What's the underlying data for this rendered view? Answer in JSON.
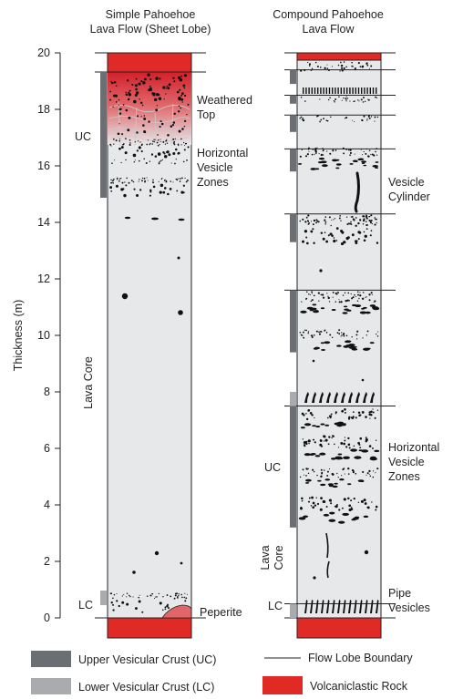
{
  "colors": {
    "volcaniclastic": "#e02a26",
    "lava_core": "#e6e8ea",
    "upper_crust": "#6b6e72",
    "lower_crust": "#a9abae",
    "outline": "#222222"
  },
  "axis": {
    "label": "Thickness (m)",
    "min": 0,
    "max": 20,
    "ticks": [
      "0",
      "2",
      "4",
      "6",
      "8",
      "10",
      "12",
      "14",
      "16",
      "18",
      "20"
    ]
  },
  "simple": {
    "title_line1": "Simple Pahoehoe",
    "title_line2": "Lava Flow (Sheet Lobe)",
    "labels": {
      "weathered_1": "Weathered",
      "weathered_2": "Top",
      "hvz_1": "Horizontal",
      "hvz_2": "Vesicle",
      "hvz_3": "Zones",
      "uc": "UC",
      "lava_core": "Lava Core",
      "lc": "LC",
      "peperite": "Peperite"
    },
    "upper_crust_range": [
      14.8,
      19.3
    ],
    "lower_crust_range": [
      0.5,
      1.0
    ]
  },
  "compound": {
    "title_line1": "Compound Pahoehoe",
    "title_line2": "Lava Flow",
    "labels": {
      "vc_1": "Vesicle",
      "vc_2": "Cylinder",
      "hvz_1": "Horizontal",
      "hvz_2": "Vesicle",
      "hvz_3": "Zones",
      "uc": "UC",
      "lava_core_1": "Lava",
      "lava_core_2": "Core",
      "lc": "LC",
      "pipe_1": "Pipe",
      "pipe_2": "Vesicles"
    },
    "boundaries": [
      0.5,
      7.5,
      11.6,
      14.3,
      16.6,
      17.8,
      18.5,
      19.4
    ],
    "uc_bars": [
      [
        3.2,
        7.5
      ],
      [
        9.4,
        11.6
      ],
      [
        13.3,
        14.3
      ],
      [
        15.8,
        16.6
      ],
      [
        17.2,
        17.8
      ],
      [
        18.2,
        18.5
      ],
      [
        18.9,
        19.4
      ]
    ],
    "lc_bars": [
      [
        0.0,
        0.5
      ],
      [
        7.5,
        8.0
      ]
    ]
  },
  "legend": {
    "uc": "Upper Vesicular Crust (UC)",
    "lc": "Lower Vesicular Crust (LC)",
    "boundary": "Flow Lobe Boundary",
    "volcaniclastic": "Volcaniclastic Rock"
  }
}
